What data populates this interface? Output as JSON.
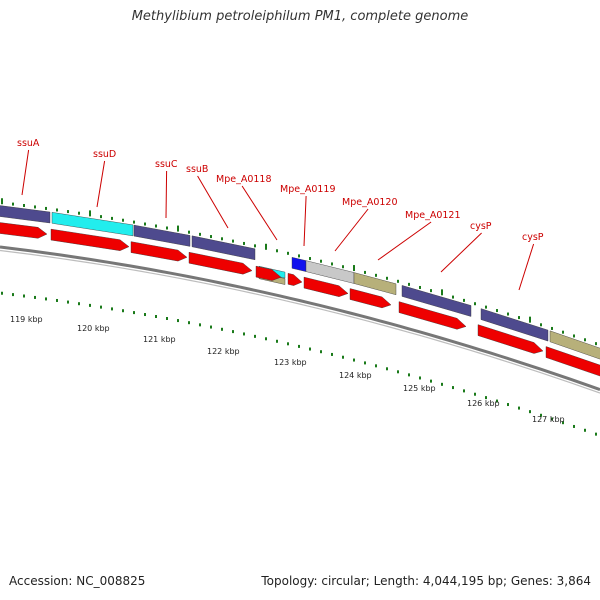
{
  "title": "Methylibium petroleiphilum PM1, complete genome",
  "footer": {
    "accession": "Accession: NC_008825",
    "summary": "Topology: circular; Length: 4,044,195 bp; Genes: 3,864"
  },
  "colors": {
    "cds": "#ee0000",
    "forward_gene": "#4e4a8e",
    "cyan_gene": "#22eded",
    "blue_gene": "#1111ee",
    "grey_gene": "#c8c8c8",
    "tan_gene": "#b7b07a",
    "label": "#cc0000",
    "tick": "#1a7a1a",
    "backbone": "#888888"
  },
  "tick_labels": [
    "119 kbp",
    "120 kbp",
    "121 kbp",
    "122 kbp",
    "123 kbp",
    "124 kbp",
    "125 kbp",
    "126 kbp",
    "127 kbp"
  ],
  "gene_labels": [
    "ssuA",
    "ssuD",
    "ssuC",
    "ssuB",
    "Mpe_A0118",
    "Mpe_A0119",
    "Mpe_A0120",
    "Mpe_A0121",
    "cysP",
    "cysP"
  ]
}
